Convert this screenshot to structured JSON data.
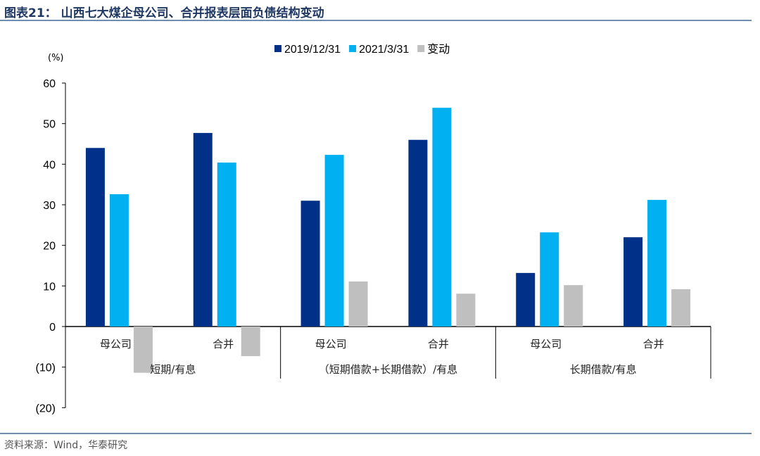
{
  "title": "图表21：  山西七大煤企母公司、合并报表层面负债结构变动",
  "source": "资料来源：Wind，华泰研究",
  "chart_data": {
    "type": "bar",
    "unit_label": "(%)",
    "ylim": [
      -20,
      60
    ],
    "yticks": [
      60,
      50,
      40,
      30,
      20,
      10,
      0,
      -10,
      -20
    ],
    "ytick_labels": [
      "60",
      "50",
      "40",
      "30",
      "20",
      "10",
      "0",
      "(10)",
      "(20)"
    ],
    "categories": [
      "母公司",
      "合并",
      "母公司",
      "合并",
      "母公司",
      "合并"
    ],
    "groups": [
      "短期/有息",
      "（短期借款+长期借款）/有息",
      "长期借款/有息"
    ],
    "legend_position": "top",
    "grid": false,
    "series": [
      {
        "name": "2019/12/31",
        "color": "#003087",
        "values": [
          44.0,
          47.7,
          31.0,
          46.0,
          13.2,
          22.0
        ]
      },
      {
        "name": "2021/3/31",
        "color": "#00b0f0",
        "values": [
          32.6,
          40.4,
          42.3,
          53.9,
          23.2,
          31.2
        ]
      },
      {
        "name": "变动",
        "color": "#bfbfbf",
        "values": [
          -11.4,
          -7.3,
          11.1,
          8.1,
          10.2,
          9.2
        ]
      }
    ]
  }
}
